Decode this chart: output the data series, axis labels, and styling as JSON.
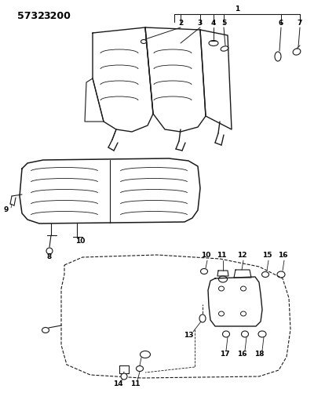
{
  "title1": "5732",
  "title2": "3200",
  "bg_color": "#ffffff",
  "lc": "#1a1a1a",
  "tc": "#000000",
  "figsize": [
    4.28,
    5.33
  ],
  "dpi": 100
}
